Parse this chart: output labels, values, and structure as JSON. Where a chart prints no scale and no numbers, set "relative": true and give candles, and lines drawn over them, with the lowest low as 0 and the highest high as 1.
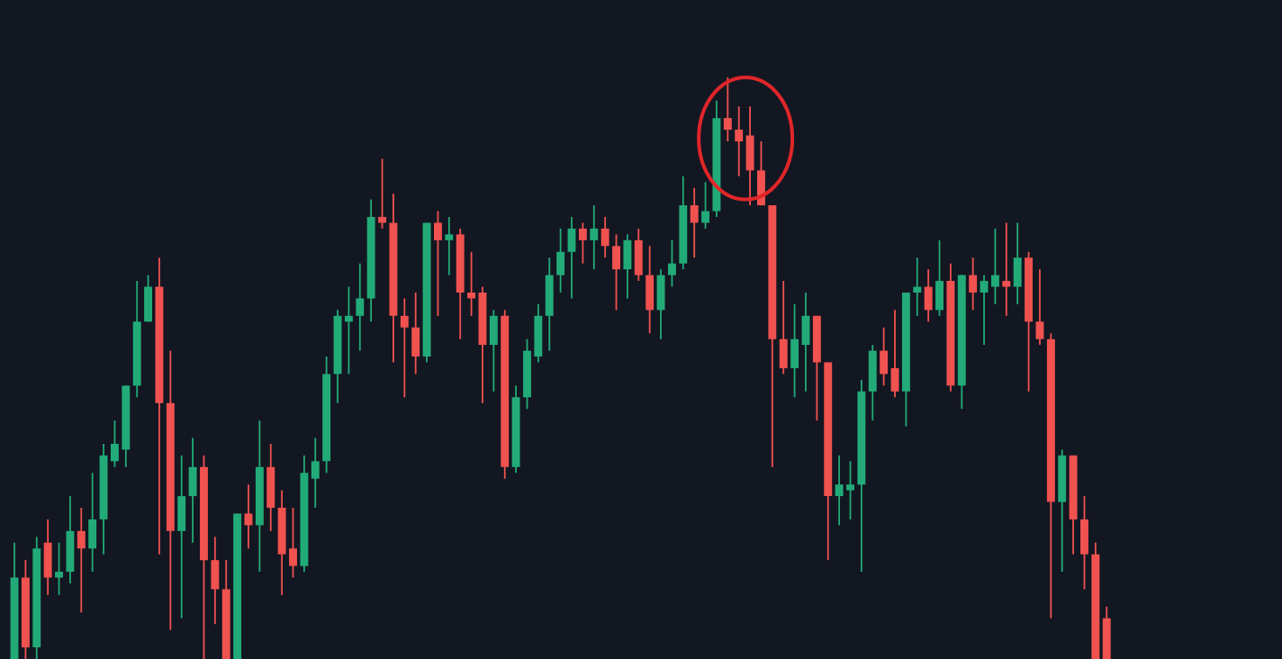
{
  "chart_data": {
    "type": "candlestick",
    "relative": true,
    "categories": [
      null,
      null,
      null,
      null,
      null,
      null,
      null,
      null,
      null,
      null,
      null,
      null,
      null,
      null,
      null,
      null,
      null,
      null,
      null,
      null,
      null,
      null,
      null,
      null,
      null,
      null,
      null,
      null,
      null,
      null,
      null,
      null,
      null,
      null,
      null,
      null,
      null,
      null,
      null,
      null,
      null,
      null,
      null,
      null,
      null,
      null,
      null,
      null,
      null,
      null,
      null,
      null,
      null,
      null,
      null,
      null,
      null,
      null,
      null,
      null,
      null,
      null,
      null,
      null,
      null,
      null,
      null,
      null,
      null,
      null,
      null,
      null,
      null,
      null,
      null,
      null,
      null,
      null,
      null,
      null,
      null,
      null,
      null,
      null,
      null,
      null,
      null,
      null,
      null,
      null,
      null,
      null,
      null,
      null,
      null,
      null,
      null,
      null,
      null
    ],
    "ohlc": [
      [
        0,
        0.2,
        0,
        0.14
      ],
      [
        0.14,
        0.17,
        0,
        0.02
      ],
      [
        0.02,
        0.21,
        0,
        0.19
      ],
      [
        0.2,
        0.24,
        0.11,
        0.14
      ],
      [
        0.14,
        0.2,
        0.11,
        0.15
      ],
      [
        0.15,
        0.28,
        0.13,
        0.22
      ],
      [
        0.22,
        0.26,
        0.08,
        0.19
      ],
      [
        0.19,
        0.32,
        0.15,
        0.24
      ],
      [
        0.24,
        0.37,
        0.18,
        0.35
      ],
      [
        0.34,
        0.41,
        0.33,
        0.37
      ],
      [
        0.36,
        0.47,
        0.33,
        0.47
      ],
      [
        0.47,
        0.65,
        0.45,
        0.58
      ],
      [
        0.58,
        0.66,
        0.58,
        0.64
      ],
      [
        0.64,
        0.69,
        0.18,
        0.44
      ],
      [
        0.44,
        0.53,
        0.05,
        0.22
      ],
      [
        0.22,
        0.35,
        0.07,
        0.28
      ],
      [
        0.28,
        0.38,
        0.2,
        0.33
      ],
      [
        0.33,
        0.35,
        0,
        0.17
      ],
      [
        0.17,
        0.21,
        0.06,
        0.12
      ],
      [
        0.12,
        0.17,
        0,
        0
      ],
      [
        0,
        0.25,
        0,
        0.25
      ],
      [
        0.25,
        0.3,
        0.19,
        0.23
      ],
      [
        0.23,
        0.41,
        0.15,
        0.33
      ],
      [
        0.33,
        0.37,
        0.22,
        0.26
      ],
      [
        0.26,
        0.29,
        0.11,
        0.18
      ],
      [
        0.19,
        0.26,
        0.14,
        0.16
      ],
      [
        0.16,
        0.35,
        0.15,
        0.32
      ],
      [
        0.31,
        0.38,
        0.26,
        0.34
      ],
      [
        0.34,
        0.52,
        0.32,
        0.49
      ],
      [
        0.49,
        0.6,
        0.44,
        0.59
      ],
      [
        0.58,
        0.64,
        0.49,
        0.59
      ],
      [
        0.59,
        0.68,
        0.53,
        0.62
      ],
      [
        0.62,
        0.79,
        0.58,
        0.76
      ],
      [
        0.76,
        0.86,
        0.74,
        0.75
      ],
      [
        0.75,
        0.8,
        0.51,
        0.59
      ],
      [
        0.59,
        0.62,
        0.45,
        0.57
      ],
      [
        0.57,
        0.63,
        0.49,
        0.52
      ],
      [
        0.52,
        0.75,
        0.51,
        0.75
      ],
      [
        0.75,
        0.77,
        0.59,
        0.72
      ],
      [
        0.72,
        0.76,
        0.66,
        0.73
      ],
      [
        0.73,
        0.74,
        0.55,
        0.63
      ],
      [
        0.63,
        0.7,
        0.59,
        0.62
      ],
      [
        0.63,
        0.64,
        0.44,
        0.54
      ],
      [
        0.54,
        0.6,
        0.46,
        0.59
      ],
      [
        0.59,
        0.6,
        0.31,
        0.33
      ],
      [
        0.33,
        0.47,
        0.32,
        0.45
      ],
      [
        0.45,
        0.55,
        0.43,
        0.53
      ],
      [
        0.52,
        0.61,
        0.51,
        0.59
      ],
      [
        0.59,
        0.69,
        0.53,
        0.66
      ],
      [
        0.66,
        0.74,
        0.63,
        0.7
      ],
      [
        0.7,
        0.76,
        0.62,
        0.74
      ],
      [
        0.74,
        0.75,
        0.68,
        0.72
      ],
      [
        0.72,
        0.78,
        0.67,
        0.74
      ],
      [
        0.74,
        0.76,
        0.69,
        0.71
      ],
      [
        0.71,
        0.73,
        0.6,
        0.67
      ],
      [
        0.67,
        0.73,
        0.62,
        0.72
      ],
      [
        0.72,
        0.74,
        0.65,
        0.66
      ],
      [
        0.66,
        0.71,
        0.56,
        0.6
      ],
      [
        0.6,
        0.67,
        0.55,
        0.66
      ],
      [
        0.66,
        0.72,
        0.64,
        0.68
      ],
      [
        0.68,
        0.83,
        0.67,
        0.78
      ],
      [
        0.78,
        0.81,
        0.69,
        0.75
      ],
      [
        0.75,
        0.82,
        0.74,
        0.77
      ],
      [
        0.77,
        0.96,
        0.76,
        0.93
      ],
      [
        0.93,
        1,
        0.89,
        0.91
      ],
      [
        0.91,
        0.95,
        0.83,
        0.89
      ],
      [
        0.9,
        0.95,
        0.78,
        0.84
      ],
      [
        0.84,
        0.89,
        0.78,
        0.78
      ],
      [
        0.78,
        0.78,
        0.33,
        0.55
      ],
      [
        0.55,
        0.65,
        0.49,
        0.5
      ],
      [
        0.5,
        0.61,
        0.45,
        0.55
      ],
      [
        0.54,
        0.63,
        0.46,
        0.59
      ],
      [
        0.59,
        0.59,
        0.41,
        0.51
      ],
      [
        0.51,
        0.51,
        0.17,
        0.28
      ],
      [
        0.28,
        0.35,
        0.23,
        0.3
      ],
      [
        0.29,
        0.34,
        0.24,
        0.3
      ],
      [
        0.3,
        0.48,
        0.15,
        0.46
      ],
      [
        0.46,
        0.54,
        0.41,
        0.53
      ],
      [
        0.53,
        0.57,
        0.47,
        0.49
      ],
      [
        0.5,
        0.6,
        0.45,
        0.46
      ],
      [
        0.46,
        0.63,
        0.4,
        0.63
      ],
      [
        0.63,
        0.69,
        0.59,
        0.64
      ],
      [
        0.64,
        0.67,
        0.58,
        0.6
      ],
      [
        0.6,
        0.72,
        0.59,
        0.65
      ],
      [
        0.65,
        0.68,
        0.46,
        0.47
      ],
      [
        0.47,
        0.66,
        0.43,
        0.66
      ],
      [
        0.66,
        0.69,
        0.6,
        0.63
      ],
      [
        0.63,
        0.66,
        0.54,
        0.65
      ],
      [
        0.64,
        0.74,
        0.61,
        0.66
      ],
      [
        0.65,
        0.75,
        0.59,
        0.64
      ],
      [
        0.64,
        0.75,
        0.61,
        0.69
      ],
      [
        0.69,
        0.7,
        0.46,
        0.58
      ],
      [
        0.58,
        0.67,
        0.54,
        0.55
      ],
      [
        0.55,
        0.56,
        0.07,
        0.27
      ],
      [
        0.27,
        0.36,
        0.15,
        0.35
      ],
      [
        0.35,
        0.35,
        0.18,
        0.24
      ],
      [
        0.24,
        0.28,
        0.12,
        0.18
      ],
      [
        0.18,
        0.2,
        0,
        0
      ],
      [
        0.07,
        0.09,
        0,
        0
      ]
    ]
  }
}
